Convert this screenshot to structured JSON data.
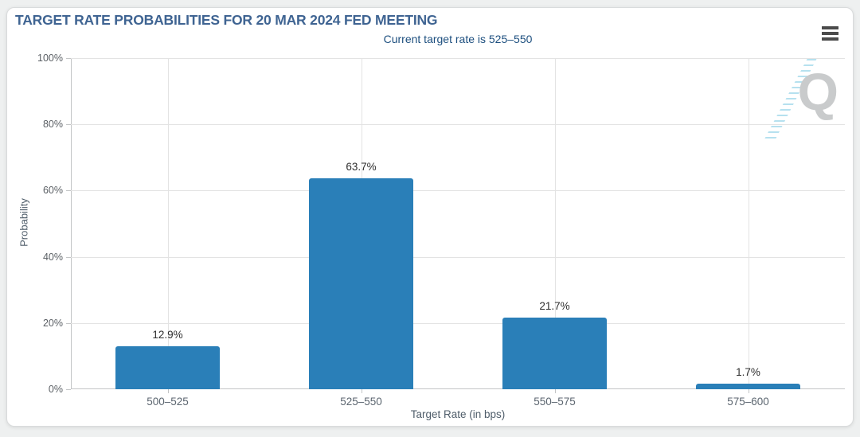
{
  "header": {
    "title": "TARGET RATE PROBABILITIES FOR 20 MAR 2024 FED MEETING",
    "subtitle": "Current target rate is 525–550",
    "menu_icon": "hamburger-menu-icon"
  },
  "watermark": {
    "letter": "Q"
  },
  "colors": {
    "bar": "#2a7fb8",
    "title": "#3f6492",
    "subtitle": "#1d4f7f",
    "gridline": "#e3e3e3",
    "axis": "#c3c5c6"
  },
  "chart_data": {
    "type": "bar",
    "title": "TARGET RATE PROBABILITIES FOR 20 MAR 2024 FED MEETING",
    "subtitle": "Current target rate is 525–550",
    "categories": [
      "500–525",
      "525–550",
      "550–575",
      "575–600"
    ],
    "values": [
      12.9,
      63.7,
      21.7,
      1.7
    ],
    "value_labels": [
      "12.9%",
      "63.7%",
      "21.7%",
      "1.7%"
    ],
    "xlabel": "Target Rate (in bps)",
    "ylabel": "Probability",
    "ylim": [
      0,
      100
    ],
    "yticks": [
      0,
      20,
      40,
      60,
      80,
      100
    ],
    "ytick_labels": [
      "0%",
      "20%",
      "40%",
      "60%",
      "80%",
      "100%"
    ],
    "grid": true,
    "legend": "none",
    "bar_color": "#2a7fb8"
  }
}
